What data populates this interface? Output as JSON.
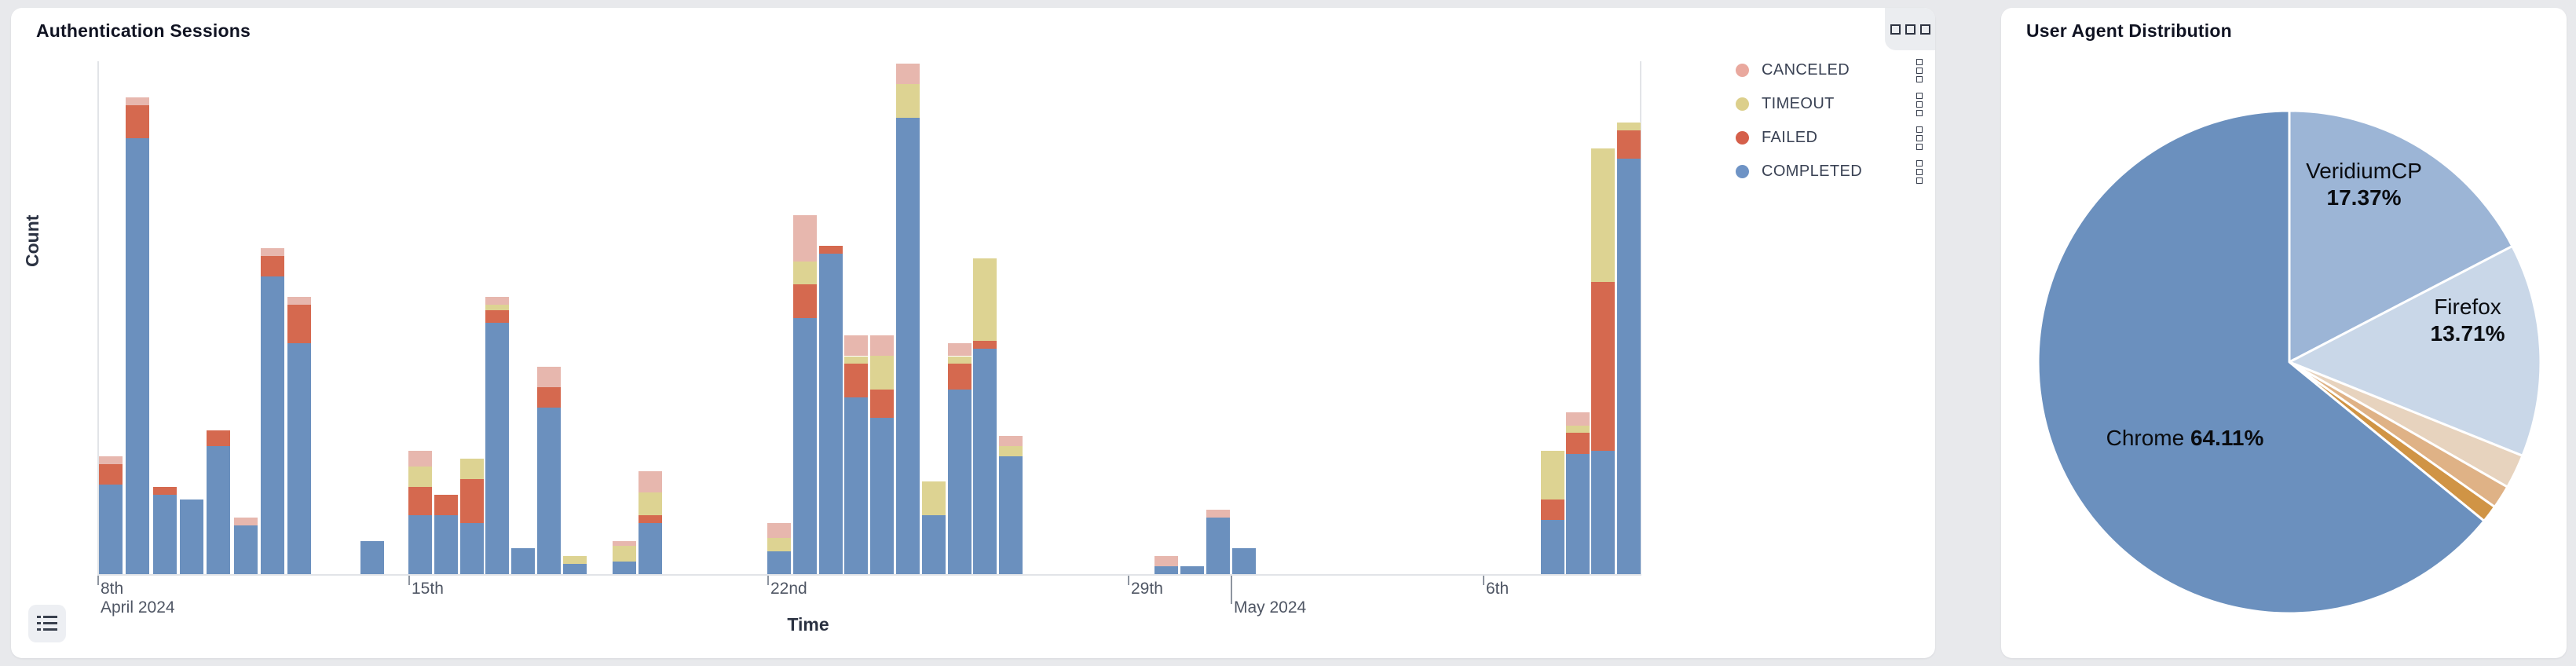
{
  "page": {
    "background": "#e8e9ec"
  },
  "cards": [
    {
      "title": "Authentication Sessions",
      "corner_button_icon": "three-squares-menu",
      "list_button_icon": "list-legend-toggle"
    },
    {
      "title": "User Agent Distribution"
    }
  ],
  "legend": {
    "items": [
      {
        "label": "CANCELED",
        "dot_color": "#e9a89e"
      },
      {
        "label": "TIMEOUT",
        "dot_color": "#dccf8b"
      },
      {
        "label": "FAILED",
        "dot_color": "#d55f4a"
      },
      {
        "label": "COMPLETED",
        "dot_color": "#6e93c5"
      }
    ],
    "item_menu_icon": "stacked-squares-kebab"
  },
  "chart_data": [
    {
      "type": "bar",
      "variant": "stacked",
      "title": "Authentication Sessions",
      "xlabel": "Time",
      "ylabel": "Count",
      "y_axis_tick_labels_visible": false,
      "values_unit": "percent_of_max_bar_height (y axis unlabeled; values estimated from pixel heights, max stack = 100)",
      "series_order": [
        "COMPLETED",
        "FAILED",
        "TIMEOUT",
        "CANCELED"
      ],
      "colors": {
        "COMPLETED": "#6b90be",
        "FAILED": "#d5694f",
        "TIMEOUT": "#ddd392",
        "CANCELED": "#e7b7ae"
      },
      "x_ticks": [
        {
          "label": "8th",
          "x": 0,
          "tick": true,
          "long": false,
          "row": 1
        },
        {
          "label": "April 2024",
          "x": 0,
          "tick": false,
          "long": false,
          "row": 2
        },
        {
          "label": "15th",
          "x": 396,
          "tick": true,
          "long": false,
          "row": 1
        },
        {
          "label": "22nd",
          "x": 853,
          "tick": true,
          "long": false,
          "row": 1
        },
        {
          "label": "29th",
          "x": 1312,
          "tick": true,
          "long": false,
          "row": 1
        },
        {
          "label": "May 2024",
          "x": 1443,
          "tick": true,
          "long": true,
          "row": 2
        },
        {
          "label": "6th",
          "x": 1764,
          "tick": true,
          "long": false,
          "row": 1
        }
      ],
      "bars": [
        {
          "x": 2,
          "label": "Apr 8 AM",
          "COMPLETED": 17.5,
          "FAILED": 4,
          "TIMEOUT": 0,
          "CANCELED": 1.5
        },
        {
          "x": 36,
          "label": "Apr 8 PM",
          "COMPLETED": 85,
          "FAILED": 6.5,
          "TIMEOUT": 0,
          "CANCELED": 1.5
        },
        {
          "x": 71,
          "label": "Apr 9 AM",
          "COMPLETED": 15.5,
          "FAILED": 1.5,
          "TIMEOUT": 0,
          "CANCELED": 0
        },
        {
          "x": 105,
          "label": "Apr 9 PM",
          "COMPLETED": 14.5,
          "FAILED": 0,
          "TIMEOUT": 0,
          "CANCELED": 0
        },
        {
          "x": 139,
          "label": "Apr 10 AM",
          "COMPLETED": 25,
          "FAILED": 3,
          "TIMEOUT": 0,
          "CANCELED": 0
        },
        {
          "x": 174,
          "label": "Apr 10 PM",
          "COMPLETED": 9.5,
          "FAILED": 0,
          "TIMEOUT": 0,
          "CANCELED": 1.5
        },
        {
          "x": 208,
          "label": "Apr 11 AM",
          "COMPLETED": 58,
          "FAILED": 4,
          "TIMEOUT": 0,
          "CANCELED": 1.5
        },
        {
          "x": 242,
          "label": "Apr 11 PM",
          "COMPLETED": 45,
          "FAILED": 7.5,
          "TIMEOUT": 0,
          "CANCELED": 1.5
        },
        {
          "x": 335,
          "label": "Apr 13 AM",
          "COMPLETED": 6.5,
          "FAILED": 0,
          "TIMEOUT": 0,
          "CANCELED": 0
        },
        {
          "x": 396,
          "label": "Apr 15 AM",
          "COMPLETED": 11.5,
          "FAILED": 5.5,
          "TIMEOUT": 4,
          "CANCELED": 3
        },
        {
          "x": 429,
          "label": "Apr 15 PM",
          "COMPLETED": 11.5,
          "FAILED": 4,
          "TIMEOUT": 0,
          "CANCELED": 0
        },
        {
          "x": 462,
          "label": "Apr 16 AM",
          "COMPLETED": 10,
          "FAILED": 8.5,
          "TIMEOUT": 4,
          "CANCELED": 0
        },
        {
          "x": 494,
          "label": "Apr 16 PM",
          "COMPLETED": 49,
          "FAILED": 2.5,
          "TIMEOUT": 1,
          "CANCELED": 1.5
        },
        {
          "x": 527,
          "label": "Apr 17 AM",
          "COMPLETED": 5,
          "FAILED": 0,
          "TIMEOUT": 0,
          "CANCELED": 0
        },
        {
          "x": 560,
          "label": "Apr 17 PM",
          "COMPLETED": 32.5,
          "FAILED": 4,
          "TIMEOUT": 0,
          "CANCELED": 4
        },
        {
          "x": 593,
          "label": "Apr 18 AM",
          "COMPLETED": 2,
          "FAILED": 0,
          "TIMEOUT": 1.5,
          "CANCELED": 0
        },
        {
          "x": 656,
          "label": "Apr 19 AM",
          "COMPLETED": 2.5,
          "FAILED": 0,
          "TIMEOUT": 3,
          "CANCELED": 1
        },
        {
          "x": 689,
          "label": "Apr 19 PM",
          "COMPLETED": 10,
          "FAILED": 1.5,
          "TIMEOUT": 4.5,
          "CANCELED": 4
        },
        {
          "x": 853,
          "label": "Apr 22 AM",
          "COMPLETED": 4.5,
          "FAILED": 0,
          "TIMEOUT": 2.5,
          "CANCELED": 3
        },
        {
          "x": 886,
          "label": "Apr 22 PM",
          "COMPLETED": 50,
          "FAILED": 6.5,
          "TIMEOUT": 4.5,
          "CANCELED": 9
        },
        {
          "x": 919,
          "label": "Apr 23 AM",
          "COMPLETED": 62.5,
          "FAILED": 1.5,
          "TIMEOUT": 0,
          "CANCELED": 0
        },
        {
          "x": 951,
          "label": "Apr 23 PM",
          "COMPLETED": 34.5,
          "FAILED": 6.5,
          "TIMEOUT": 1.5,
          "CANCELED": 4
        },
        {
          "x": 984,
          "label": "Apr 24 AM",
          "COMPLETED": 30.5,
          "FAILED": 5.5,
          "TIMEOUT": 6.5,
          "CANCELED": 4
        },
        {
          "x": 1017,
          "label": "Apr 24 PM",
          "COMPLETED": 89,
          "FAILED": 0,
          "TIMEOUT": 6.5,
          "CANCELED": 4
        },
        {
          "x": 1050,
          "label": "Apr 25 AM",
          "COMPLETED": 11.5,
          "FAILED": 0,
          "TIMEOUT": 6.5,
          "CANCELED": 0
        },
        {
          "x": 1083,
          "label": "Apr 25 PM",
          "COMPLETED": 36,
          "FAILED": 5,
          "TIMEOUT": 1.5,
          "CANCELED": 2.5
        },
        {
          "x": 1115,
          "label": "Apr 26 AM",
          "COMPLETED": 44,
          "FAILED": 1.5,
          "TIMEOUT": 16,
          "CANCELED": 0
        },
        {
          "x": 1148,
          "label": "Apr 26 PM",
          "COMPLETED": 23,
          "FAILED": 0,
          "TIMEOUT": 2,
          "CANCELED": 2
        },
        {
          "x": 1346,
          "label": "Apr 29 PM",
          "COMPLETED": 1.5,
          "FAILED": 0,
          "TIMEOUT": 0,
          "CANCELED": 2
        },
        {
          "x": 1379,
          "label": "Apr 30 AM",
          "COMPLETED": 1.5,
          "FAILED": 0,
          "TIMEOUT": 0,
          "CANCELED": 0
        },
        {
          "x": 1412,
          "label": "Apr 30 PM",
          "COMPLETED": 11,
          "FAILED": 0,
          "TIMEOUT": 0,
          "CANCELED": 1.5
        },
        {
          "x": 1445,
          "label": "May 1 AM",
          "COMPLETED": 5,
          "FAILED": 0,
          "TIMEOUT": 0,
          "CANCELED": 0
        },
        {
          "x": 1838,
          "label": "May 7 AM",
          "COMPLETED": 10.5,
          "FAILED": 4,
          "TIMEOUT": 9.5,
          "CANCELED": 0
        },
        {
          "x": 1870,
          "label": "May 7 PM",
          "COMPLETED": 23.5,
          "FAILED": 4,
          "TIMEOUT": 1.5,
          "CANCELED": 2.5
        },
        {
          "x": 1902,
          "label": "May 8 AM",
          "COMPLETED": 24,
          "FAILED": 33,
          "TIMEOUT": 26,
          "CANCELED": 0
        },
        {
          "x": 1935,
          "label": "May 8 PM",
          "COMPLETED": 81,
          "FAILED": 5.5,
          "TIMEOUT": 1.5,
          "CANCELED": 0
        }
      ]
    },
    {
      "type": "pie",
      "title": "User Agent Distribution",
      "start_angle_deg": 0,
      "direction": "clockwise_from_top",
      "slices": [
        {
          "label": "VeridiumCP",
          "value": 17.37,
          "color": "#9cb5d6",
          "show_label": true,
          "label_x": 462,
          "label_y": 225,
          "two_line": true
        },
        {
          "label": "Firefox",
          "value": 13.71,
          "color": "#c9d7e8",
          "show_label": true,
          "label_x": 594,
          "label_y": 398,
          "two_line": true
        },
        {
          "label": "unlabeled-1",
          "value": 2.2,
          "color": "#e7d3be",
          "show_label": false
        },
        {
          "label": "unlabeled-2",
          "value": 1.5,
          "color": "#dfb286",
          "show_label": false
        },
        {
          "label": "unlabeled-3",
          "value": 1.11,
          "color": "#d09445",
          "show_label": false
        },
        {
          "label": "Chrome",
          "value": 64.11,
          "color": "#6b90be",
          "show_label": true,
          "label_x": 234,
          "label_y": 548,
          "two_line": false
        }
      ],
      "geometry": {
        "cx": 367,
        "cy": 451,
        "r": 320
      }
    }
  ]
}
